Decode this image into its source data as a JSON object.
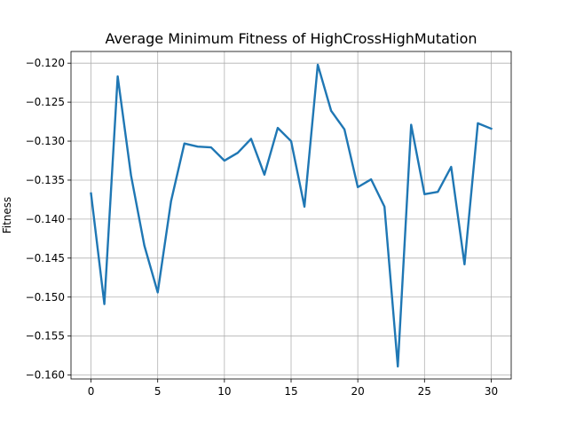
{
  "chart_data": {
    "type": "line",
    "title": "Average Minimum Fitness of HighCrossHighMutation",
    "xlabel": "",
    "ylabel": "Fitness",
    "xlim": [
      -1.5,
      31.5
    ],
    "ylim": [
      -0.1605,
      -0.1185
    ],
    "xticks": [
      0,
      5,
      10,
      15,
      20,
      25,
      30
    ],
    "yticks": [
      -0.16,
      -0.155,
      -0.15,
      -0.145,
      -0.14,
      -0.135,
      -0.13,
      -0.125,
      -0.12
    ],
    "xtick_labels": [
      "0",
      "5",
      "10",
      "15",
      "20",
      "25",
      "30"
    ],
    "ytick_labels": [
      "−0.160",
      "−0.155",
      "−0.150",
      "−0.145",
      "−0.140",
      "−0.135",
      "−0.130",
      "−0.125",
      "−0.120"
    ],
    "grid": true,
    "series": [
      {
        "color": "#1f77b4",
        "x": [
          0,
          1,
          2,
          3,
          4,
          5,
          6,
          7,
          8,
          9,
          10,
          11,
          12,
          13,
          14,
          15,
          16,
          17,
          18,
          19,
          20,
          21,
          22,
          23,
          24,
          25,
          26,
          27,
          28,
          29,
          30
        ],
        "values": [
          -0.1367,
          -0.1509,
          -0.1217,
          -0.1344,
          -0.1434,
          -0.1494,
          -0.1377,
          -0.1303,
          -0.1307,
          -0.1308,
          -0.1325,
          -0.1315,
          -0.1297,
          -0.1343,
          -0.1283,
          -0.13,
          -0.1384,
          -0.1202,
          -0.1261,
          -0.1285,
          -0.1359,
          -0.1349,
          -0.1384,
          -0.1589,
          -0.1279,
          -0.1368,
          -0.1365,
          -0.1333,
          -0.1458,
          -0.1277,
          -0.1284
        ]
      }
    ]
  }
}
